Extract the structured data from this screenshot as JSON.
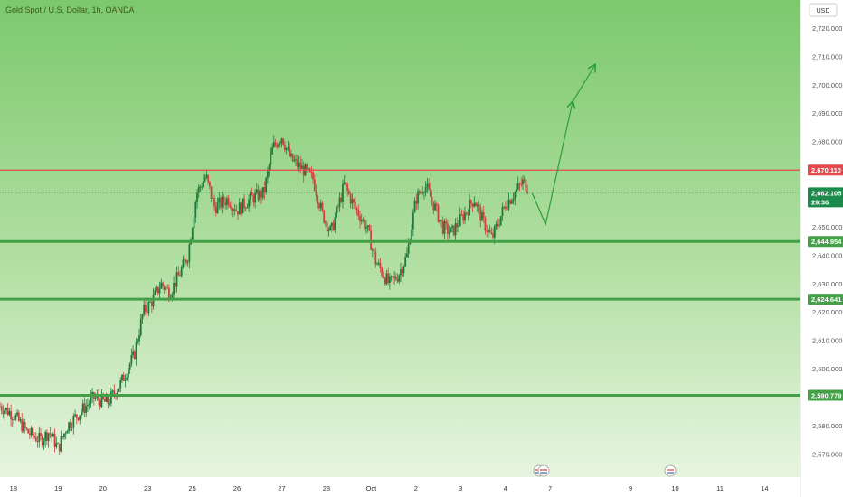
{
  "header": {
    "title": "Gold Spot / U.S. Dollar, 1h, OANDA"
  },
  "currency_button": {
    "label": "USD"
  },
  "chart_data": {
    "type": "candlestick",
    "title": "Gold Spot / U.S. Dollar, 1h, OANDA",
    "ylim": [
      2562,
      2730
    ],
    "y_ticks": [
      "2,720.000",
      "2,710.000",
      "2,700.000",
      "2,690.000",
      "2,680.000",
      "2,660.000",
      "2,650.000",
      "2,640.000",
      "2,630.000",
      "2,620.000",
      "2,610.000",
      "2,600.000",
      "2,580.000",
      "2,570.000"
    ],
    "x_ticks": [
      {
        "label": "18",
        "pos": 0.3
      },
      {
        "label": "19",
        "pos": 1.3
      },
      {
        "label": "20",
        "pos": 2.3
      },
      {
        "label": "23",
        "pos": 3.3
      },
      {
        "label": "25",
        "pos": 4.3
      },
      {
        "label": "26",
        "pos": 5.3
      },
      {
        "label": "27",
        "pos": 6.3
      },
      {
        "label": "28",
        "pos": 7.3
      },
      {
        "label": "Oct",
        "pos": 8.3
      },
      {
        "label": "2",
        "pos": 9.3
      },
      {
        "label": "3",
        "pos": 10.3
      },
      {
        "label": "4",
        "pos": 11.3
      },
      {
        "label": "7",
        "pos": 12.3
      },
      {
        "label": "9",
        "pos": 14.1
      },
      {
        "label": "10",
        "pos": 15.1
      },
      {
        "label": "11",
        "pos": 16.1
      },
      {
        "label": "14",
        "pos": 17.1
      }
    ],
    "horizontal_levels": [
      {
        "value": 2670.11,
        "label": "2,670.110",
        "color": "#e5484d"
      },
      {
        "value": 2644.954,
        "label": "2,644.954",
        "color": "#43a047"
      },
      {
        "value": 2624.641,
        "label": "2,624.641",
        "color": "#43a047"
      },
      {
        "value": 2590.779,
        "label": "2,590.779",
        "color": "#43a047"
      }
    ],
    "current_price": {
      "value": 2662.105,
      "label": "2,662.105",
      "countdown": "29:36",
      "color": "#1b8a4a"
    },
    "price_path": [
      [
        0.0,
        2587
      ],
      [
        0.3,
        2584
      ],
      [
        0.6,
        2578
      ],
      [
        0.9,
        2575
      ],
      [
        1.1,
        2578
      ],
      [
        1.3,
        2572
      ],
      [
        1.5,
        2580
      ],
      [
        1.8,
        2585
      ],
      [
        2.1,
        2590
      ],
      [
        2.4,
        2588
      ],
      [
        2.7,
        2595
      ],
      [
        3.0,
        2605
      ],
      [
        3.2,
        2620
      ],
      [
        3.4,
        2624
      ],
      [
        3.6,
        2630
      ],
      [
        3.8,
        2627
      ],
      [
        4.0,
        2633
      ],
      [
        4.2,
        2640
      ],
      [
        4.4,
        2662
      ],
      [
        4.6,
        2668
      ],
      [
        4.8,
        2657
      ],
      [
        5.1,
        2660
      ],
      [
        5.3,
        2656
      ],
      [
        5.6,
        2660
      ],
      [
        5.9,
        2662
      ],
      [
        6.1,
        2678
      ],
      [
        6.3,
        2682
      ],
      [
        6.5,
        2674
      ],
      [
        6.8,
        2670
      ],
      [
        7.0,
        2667
      ],
      [
        7.2,
        2655
      ],
      [
        7.4,
        2648
      ],
      [
        7.7,
        2665
      ],
      [
        7.9,
        2658
      ],
      [
        8.2,
        2650
      ],
      [
        8.4,
        2638
      ],
      [
        8.7,
        2630
      ],
      [
        8.9,
        2633
      ],
      [
        9.1,
        2640
      ],
      [
        9.3,
        2660
      ],
      [
        9.5,
        2665
      ],
      [
        9.7,
        2658
      ],
      [
        9.9,
        2650
      ],
      [
        10.1,
        2648
      ],
      [
        10.4,
        2655
      ],
      [
        10.6,
        2660
      ],
      [
        10.8,
        2652
      ],
      [
        11.0,
        2646
      ],
      [
        11.3,
        2658
      ],
      [
        11.5,
        2662
      ],
      [
        11.7,
        2666
      ],
      [
        11.8,
        2664
      ]
    ],
    "projection": [
      [
        11.9,
        2662
      ],
      [
        12.2,
        2651
      ],
      [
        12.8,
        2694
      ],
      [
        13.3,
        2707
      ]
    ]
  }
}
